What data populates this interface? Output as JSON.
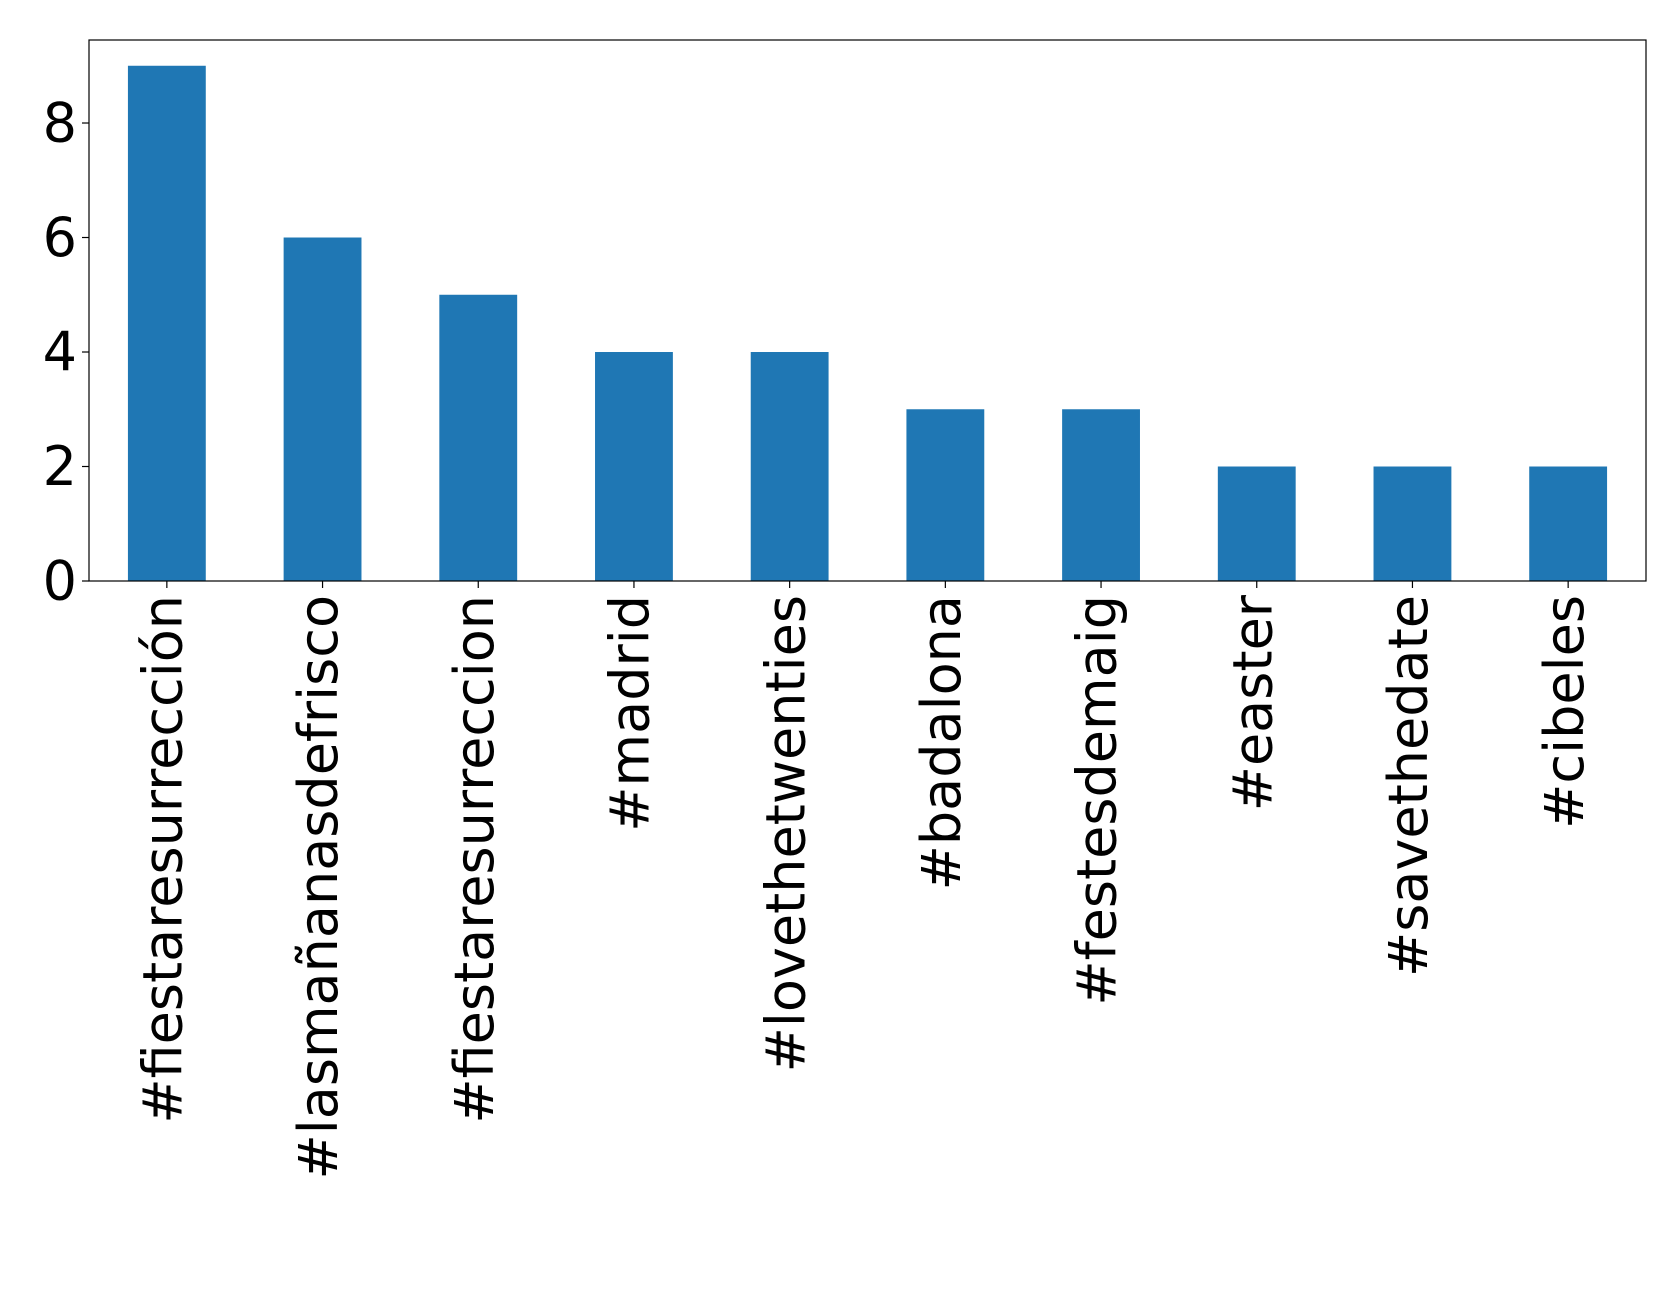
{
  "chart_data": {
    "type": "bar",
    "categories": [
      "#fiestaresurrección",
      "#lasmañanasdefrisco",
      "#fiestaresurreccion",
      "#madrid",
      "#lovethetwenties",
      "#badalona",
      "#festesdemaig",
      "#easter",
      "#savethedate",
      "#cibeles"
    ],
    "values": [
      9,
      6,
      5,
      4,
      4,
      3,
      3,
      2,
      2,
      2
    ],
    "color": "#1f77b4",
    "ylim": [
      0,
      9.45
    ],
    "yticks": [
      0,
      2,
      4,
      6,
      8
    ],
    "grid": false
  }
}
